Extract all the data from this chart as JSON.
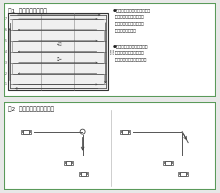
{
  "fig1_title": "図1  隣接耕うんの順序",
  "fig2_title": "図2  トラクターの方向転換",
  "text1_line1": "●図のような順序をとるのは、",
  "text1_line2": "  一度耕うんした所を後輪",
  "text1_line3": "  タイヤで踏まないための",
  "text1_line4": "  最善の方法です。",
  "text2_line1": "●したがって出発点は、トラ",
  "text2_line2": "  クターが圃場に外へ出る",
  "text2_line3": "  場所によって決まります。",
  "outer_bg": "#e8e8e8",
  "border_color": "#5a9a5a",
  "fig_bg": "#ffffff",
  "field_fill": "#d8d8d8",
  "line_col": "#555555",
  "arrow_col": "#444444",
  "text_col": "#222222"
}
